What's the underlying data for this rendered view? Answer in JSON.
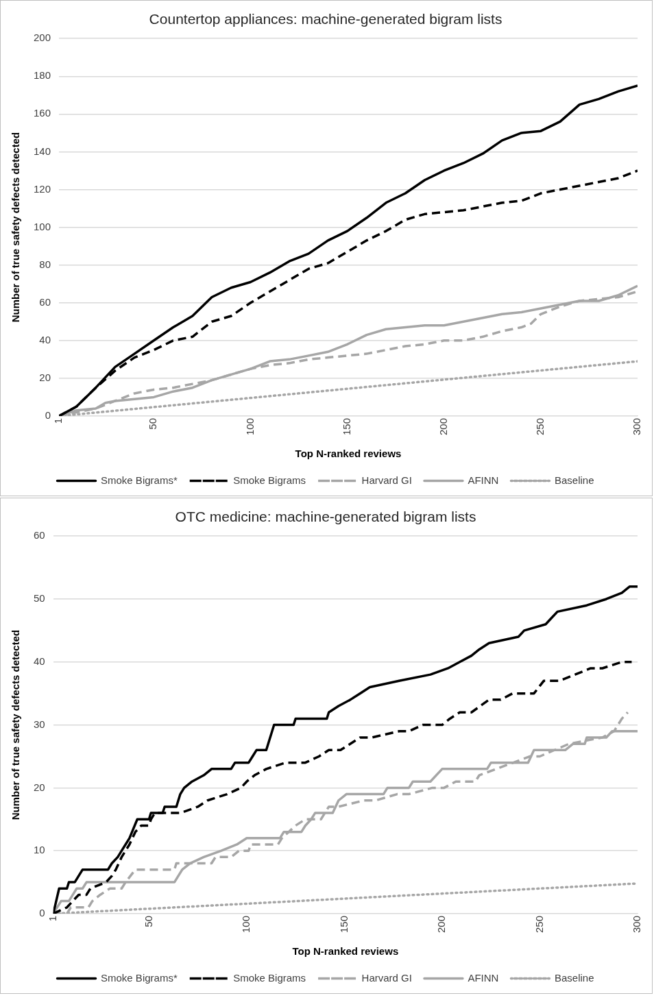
{
  "chart_data": [
    {
      "type": "line",
      "title": "Countertop appliances: machine-generated bigram lists",
      "xlabel": "Top N-ranked reviews",
      "ylabel": "Number of true safety defects detected",
      "xlim": [
        1,
        300
      ],
      "xticks": [
        1,
        50,
        100,
        150,
        200,
        250,
        300
      ],
      "ylim": [
        0,
        200
      ],
      "yticks": [
        0,
        20,
        40,
        60,
        80,
        100,
        120,
        140,
        160,
        180,
        200
      ],
      "grid": "y",
      "legend": "bottom",
      "marker": "none",
      "series": [
        {
          "name": "Smoke Bigrams*",
          "color": "#000000",
          "line_style": "solid",
          "x": [
            1,
            10,
            20,
            30,
            40,
            50,
            60,
            70,
            80,
            90,
            100,
            110,
            120,
            130,
            140,
            150,
            160,
            170,
            180,
            190,
            200,
            210,
            220,
            230,
            240,
            250,
            260,
            270,
            280,
            290,
            300
          ],
          "values": [
            0,
            5,
            15,
            26,
            33,
            40,
            47,
            53,
            63,
            68,
            71,
            76,
            82,
            86,
            93,
            98,
            105,
            113,
            118,
            125,
            130,
            134,
            139,
            146,
            150,
            151,
            156,
            165,
            168,
            172,
            175
          ]
        },
        {
          "name": "Smoke Bigrams",
          "color": "#000000",
          "line_style": "dashed",
          "x": [
            1,
            10,
            20,
            30,
            40,
            50,
            60,
            70,
            80,
            90,
            100,
            110,
            120,
            130,
            140,
            150,
            160,
            170,
            180,
            190,
            200,
            210,
            220,
            230,
            240,
            250,
            260,
            270,
            280,
            290,
            300
          ],
          "values": [
            0,
            5,
            15,
            24,
            31,
            35,
            40,
            42,
            50,
            53,
            60,
            66,
            72,
            78,
            81,
            87,
            93,
            98,
            104,
            107,
            108,
            109,
            111,
            113,
            114,
            118,
            120,
            122,
            124,
            126,
            130
          ]
        },
        {
          "name": "Harvard GI",
          "color": "#a6a6a6",
          "line_style": "dashed",
          "x": [
            1,
            10,
            20,
            30,
            40,
            50,
            60,
            70,
            80,
            90,
            100,
            110,
            120,
            130,
            140,
            150,
            160,
            170,
            180,
            190,
            200,
            210,
            220,
            230,
            240,
            245,
            250,
            260,
            270,
            280,
            290,
            300
          ],
          "values": [
            0,
            2,
            4,
            8,
            12,
            14,
            15,
            17,
            19,
            22,
            25,
            27,
            28,
            30,
            31,
            32,
            33,
            35,
            37,
            38,
            40,
            40,
            42,
            45,
            47,
            49,
            54,
            58,
            61,
            62,
            63,
            66
          ]
        },
        {
          "name": "AFINN",
          "color": "#a6a6a6",
          "line_style": "solid",
          "x": [
            1,
            10,
            20,
            25,
            30,
            40,
            50,
            60,
            70,
            80,
            90,
            100,
            110,
            120,
            130,
            140,
            150,
            160,
            170,
            180,
            190,
            200,
            210,
            220,
            230,
            240,
            250,
            260,
            270,
            280,
            290,
            300
          ],
          "values": [
            0,
            3,
            4,
            7,
            8,
            9,
            10,
            13,
            15,
            19,
            22,
            25,
            29,
            30,
            32,
            34,
            38,
            43,
            46,
            47,
            48,
            48,
            50,
            52,
            54,
            55,
            57,
            59,
            61,
            61,
            64,
            69
          ]
        },
        {
          "name": "Baseline",
          "color": "#a6a6a6",
          "line_style": "dotted",
          "x": [
            1,
            300
          ],
          "values": [
            0,
            29
          ]
        }
      ]
    },
    {
      "type": "line",
      "title": "OTC medicine: machine-generated bigram lists",
      "xlabel": "Top N-ranked reviews",
      "ylabel": "Number of true safety defects detected",
      "xlim": [
        1,
        300
      ],
      "xticks": [
        1,
        50,
        100,
        150,
        200,
        250,
        300
      ],
      "ylim": [
        0,
        60
      ],
      "yticks": [
        0,
        10,
        20,
        30,
        40,
        50,
        60
      ],
      "grid": "y",
      "legend": "bottom",
      "marker": "none",
      "series": [
        {
          "name": "Smoke Bigrams*",
          "color": "#000000",
          "line_style": "solid",
          "x": [
            1,
            4,
            8,
            9,
            12,
            14,
            16,
            29,
            31,
            34,
            36,
            38,
            40,
            44,
            50,
            51,
            57,
            58,
            64,
            66,
            68,
            72,
            78,
            82,
            92,
            94,
            101,
            103,
            105,
            110,
            114,
            124,
            125,
            141,
            142,
            147,
            153,
            158,
            163,
            178,
            194,
            203,
            209,
            215,
            219,
            224,
            239,
            242,
            253,
            256,
            259,
            274,
            284,
            292,
            296,
            300
          ],
          "values": [
            0,
            4,
            4,
            5,
            5,
            6,
            7,
            7,
            8,
            9,
            10,
            11,
            12,
            15,
            15,
            16,
            16,
            17,
            17,
            19,
            20,
            21,
            22,
            23,
            23,
            24,
            24,
            25,
            26,
            26,
            30,
            30,
            31,
            31,
            32,
            33,
            34,
            35,
            36,
            37,
            38,
            39,
            40,
            41,
            42,
            43,
            44,
            45,
            46,
            47,
            48,
            49,
            50,
            51,
            52,
            52
          ]
        },
        {
          "name": "Smoke Bigrams",
          "color": "#000000",
          "line_style": "dashed",
          "x": [
            1,
            8,
            14,
            18,
            20,
            28,
            31,
            33,
            36,
            40,
            43,
            46,
            50,
            51,
            53,
            66,
            75,
            80,
            90,
            97,
            100,
            104,
            110,
            120,
            130,
            137,
            142,
            148,
            158,
            164,
            178,
            183,
            190,
            200,
            204,
            209,
            215,
            224,
            230,
            236,
            247,
            252,
            260,
            268,
            276,
            282,
            292,
            297
          ],
          "values": [
            0,
            1,
            3,
            3,
            4,
            5,
            6,
            7,
            9,
            11,
            13,
            14,
            14,
            15,
            16,
            16,
            17,
            18,
            19,
            20,
            21,
            22,
            23,
            24,
            24,
            25,
            26,
            26,
            28,
            28,
            29,
            29,
            30,
            30,
            31,
            32,
            32,
            34,
            34,
            35,
            35,
            37,
            37,
            38,
            39,
            39,
            40,
            40
          ]
        },
        {
          "name": "Harvard GI",
          "color": "#a6a6a6",
          "line_style": "dashed",
          "x": [
            1,
            8,
            10,
            19,
            21,
            25,
            30,
            36,
            38,
            43,
            63,
            64,
            82,
            84,
            92,
            96,
            101,
            102,
            116,
            118,
            125,
            130,
            135,
            138,
            142,
            147,
            160,
            166,
            177,
            183,
            195,
            201,
            207,
            217,
            219,
            245,
            250,
            265,
            282,
            288,
            292,
            295
          ],
          "values": [
            0,
            0,
            1,
            1,
            2,
            3,
            4,
            4,
            5,
            7,
            7,
            8,
            8,
            9,
            9,
            10,
            10,
            11,
            11,
            12,
            14,
            15,
            15,
            15,
            17,
            17,
            18,
            18,
            19,
            19,
            20,
            20,
            21,
            21,
            22,
            25,
            25,
            27,
            28,
            29,
            31,
            32
          ]
        },
        {
          "name": "AFINN",
          "color": "#a6a6a6",
          "line_style": "solid",
          "x": [
            1,
            3,
            5,
            9,
            11,
            13,
            16,
            18,
            63,
            65,
            67,
            71,
            78,
            87,
            95,
            100,
            117,
            119,
            128,
            130,
            133,
            135,
            144,
            147,
            151,
            170,
            172,
            183,
            185,
            194,
            200,
            223,
            225,
            244,
            247,
            263,
            267,
            273,
            274,
            284,
            287,
            300
          ],
          "values": [
            0,
            1,
            2,
            2,
            3,
            4,
            4,
            5,
            5,
            6,
            7,
            8,
            9,
            10,
            11,
            12,
            12,
            13,
            13,
            14,
            15,
            16,
            16,
            18,
            19,
            19,
            20,
            20,
            21,
            21,
            23,
            23,
            24,
            24,
            26,
            26,
            27,
            27,
            28,
            28,
            29,
            29
          ]
        },
        {
          "name": "Baseline",
          "color": "#a6a6a6",
          "line_style": "dotted",
          "x": [
            1,
            300
          ],
          "values": [
            0,
            4.8
          ]
        }
      ]
    }
  ]
}
